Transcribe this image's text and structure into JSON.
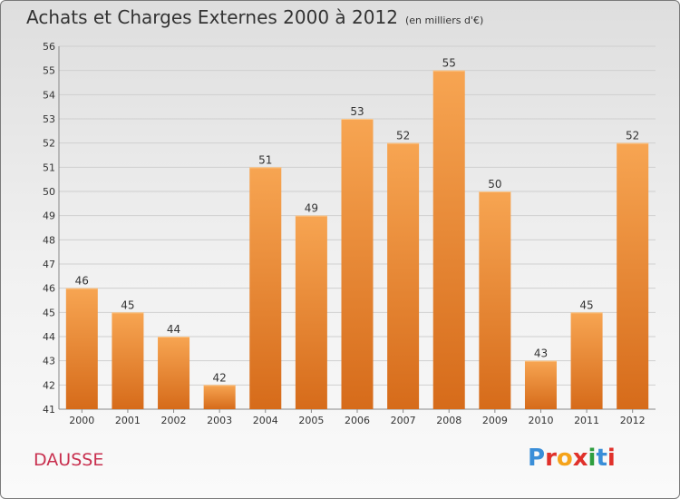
{
  "title": "Achats et Charges Externes 2000 à 2012",
  "unit": "(en milliers d'€)",
  "city": "DAUSSE",
  "logo": {
    "text": "Proxiti",
    "letter_colors": [
      "#3a8ed8",
      "#e0312b",
      "#f5a31a",
      "#e0312b",
      "#2e9e3e",
      "#3a8ed8",
      "#e0312b"
    ]
  },
  "colors": {
    "bar_light": "#f7a552",
    "bar_dark": "#d66b1a",
    "grid": "#cfcfcf",
    "text": "#333333"
  },
  "chart_data": {
    "type": "bar",
    "title": "Achats et Charges Externes 2000 à 2012",
    "subtitle": "(en milliers d'€)",
    "xlabel": "",
    "ylabel": "",
    "categories": [
      "2000",
      "2001",
      "2002",
      "2003",
      "2004",
      "2005",
      "2006",
      "2007",
      "2008",
      "2009",
      "2010",
      "2011",
      "2012"
    ],
    "values": [
      46,
      45,
      44,
      42,
      51,
      49,
      53,
      52,
      55,
      50,
      43,
      45,
      52
    ],
    "ylim": [
      41,
      56
    ],
    "yticks": [
      41,
      42,
      43,
      44,
      45,
      46,
      47,
      48,
      49,
      50,
      51,
      52,
      53,
      54,
      55,
      56
    ],
    "grid": true,
    "legend": "none"
  }
}
